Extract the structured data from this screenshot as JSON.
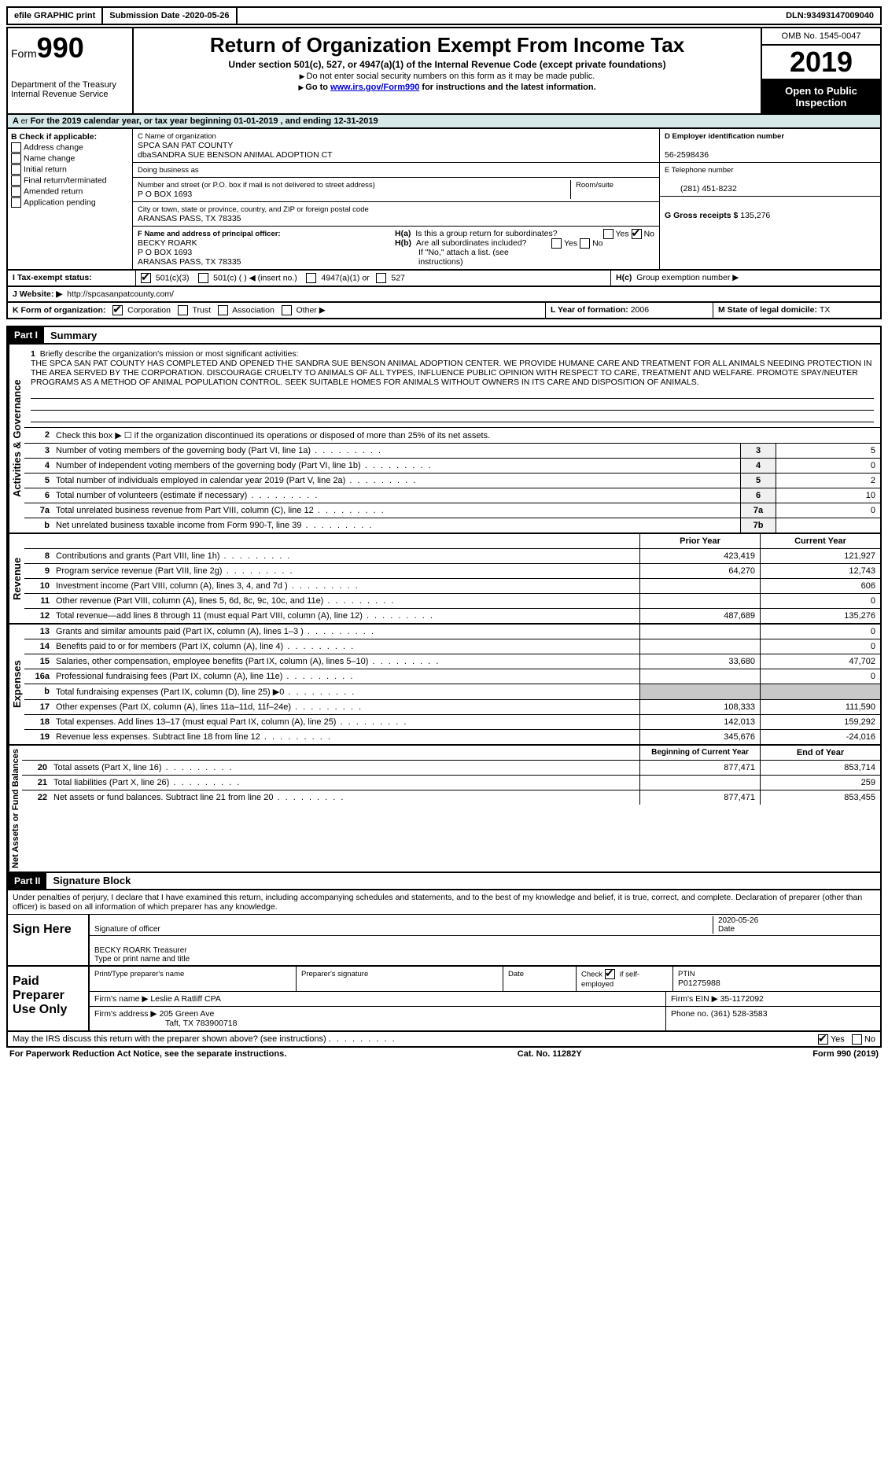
{
  "topbar": {
    "efile": "efile GRAPHIC print",
    "submission_label": "Submission Date - ",
    "submission_date": "2020-05-26",
    "dln_label": "DLN: ",
    "dln": "93493147009040"
  },
  "header": {
    "form_word": "Form",
    "form_num": "990",
    "dept": "Department of the Treasury\nInternal Revenue Service",
    "title": "Return of Organization Exempt From Income Tax",
    "subtitle": "Under section 501(c), 527, or 4947(a)(1) of the Internal Revenue Code (except private foundations)",
    "note1": "Do not enter social security numbers on this form as it may be made public.",
    "note2_pre": "Go to ",
    "note2_link": "www.irs.gov/Form990",
    "note2_post": " for instructions and the latest information.",
    "omb": "OMB No. 1545-0047",
    "year": "2019",
    "inspection": "Open to Public Inspection"
  },
  "section_a": "For the 2019 calendar year, or tax year beginning 01-01-2019   , and ending 12-31-2019",
  "col_b": {
    "title": "B Check if applicable:",
    "opts": [
      "Address change",
      "Name change",
      "Initial return",
      "Final return/terminated",
      "Amended return",
      "Application pending"
    ]
  },
  "col_c": {
    "name_label": "C Name of organization",
    "name": "SPCA SAN PAT COUNTY",
    "dba": "dbaSANDRA SUE BENSON ANIMAL ADOPTION CT",
    "doing_business": "Doing business as",
    "street_label": "Number and street (or P.O. box if mail is not delivered to street address)",
    "street": "P O BOX 1693",
    "room_label": "Room/suite",
    "city_label": "City or town, state or province, country, and ZIP or foreign postal code",
    "city": "ARANSAS PASS, TX  78335",
    "officer_label": "F Name and address of principal officer:",
    "officer_name": "BECKY ROARK",
    "officer_addr1": "P O BOX 1693",
    "officer_addr2": "ARANSAS PASS, TX  78335"
  },
  "col_d": {
    "ein_label": "D Employer identification number",
    "ein": "56-2598436",
    "phone_label": "E Telephone number",
    "phone": "(281) 451-8232",
    "gross_label": "G Gross receipts $ ",
    "gross": "135,276"
  },
  "section_h": {
    "ha_label": "H(a)",
    "ha_text": "Is this a group return for subordinates?",
    "hb_label": "H(b)",
    "hb_text": "Are all subordinates included?",
    "hb_note": "If \"No,\" attach a list. (see instructions)",
    "hc_label": "H(c)",
    "hc_text": "Group exemption number ▶",
    "yes": "Yes",
    "no": "No"
  },
  "tax_exempt": {
    "label": "I    Tax-exempt status:",
    "opt1": "501(c)(3)",
    "opt2": "501(c) (  ) ◀ (insert no.)",
    "opt3": "4947(a)(1) or",
    "opt4": "527"
  },
  "website": {
    "label": "J    Website: ▶",
    "url": "http://spcasanpatcounty.com/"
  },
  "form_org": {
    "label": "K Form of organization:",
    "opts": [
      "Corporation",
      "Trust",
      "Association",
      "Other ▶"
    ],
    "year_label": "L Year of formation: ",
    "year": "2006",
    "state_label": "M State of legal domicile: ",
    "state": "TX"
  },
  "part1": {
    "header": "Part I",
    "title": "Summary",
    "activities_label": "Activities & Governance",
    "revenue_label": "Revenue",
    "expenses_label": "Expenses",
    "netassets_label": "Net Assets or Fund Balances",
    "line1_label": "Briefly describe the organization's mission or most significant activities:",
    "mission": "THE SPCA SAN PAT COUNTY HAS COMPLETED AND OPENED THE SANDRA SUE BENSON ANIMAL ADOPTION CENTER. WE PROVIDE HUMANE CARE AND TREATMENT FOR ALL ANIMALS NEEDING PROTECTION IN THE AREA SERVED BY THE CORPORATION. DISCOURAGE CRUELTY TO ANIMALS OF ALL TYPES, INFLUENCE PUBLIC OPINION WITH RESPECT TO CARE, TREATMENT AND WELFARE. PROMOTE SPAY/NEUTER PROGRAMS AS A METHOD OF ANIMAL POPULATION CONTROL. SEEK SUITABLE HOMES FOR ANIMALS WITHOUT OWNERS IN ITS CARE AND DISPOSITION OF ANIMALS.",
    "line2": "Check this box ▶ ☐ if the organization discontinued its operations or disposed of more than 25% of its net assets.",
    "lines_gov": [
      {
        "n": "3",
        "d": "Number of voting members of the governing body (Part VI, line 1a)",
        "box": "3",
        "v": "5"
      },
      {
        "n": "4",
        "d": "Number of independent voting members of the governing body (Part VI, line 1b)",
        "box": "4",
        "v": "0"
      },
      {
        "n": "5",
        "d": "Total number of individuals employed in calendar year 2019 (Part V, line 2a)",
        "box": "5",
        "v": "2"
      },
      {
        "n": "6",
        "d": "Total number of volunteers (estimate if necessary)",
        "box": "6",
        "v": "10"
      },
      {
        "n": "7a",
        "d": "Total unrelated business revenue from Part VIII, column (C), line 12",
        "box": "7a",
        "v": "0"
      },
      {
        "n": "b",
        "d": "Net unrelated business taxable income from Form 990-T, line 39",
        "box": "7b",
        "v": ""
      }
    ],
    "col_prior": "Prior Year",
    "col_current": "Current Year",
    "lines_rev": [
      {
        "n": "8",
        "d": "Contributions and grants (Part VIII, line 1h)",
        "p": "423,419",
        "c": "121,927"
      },
      {
        "n": "9",
        "d": "Program service revenue (Part VIII, line 2g)",
        "p": "64,270",
        "c": "12,743"
      },
      {
        "n": "10",
        "d": "Investment income (Part VIII, column (A), lines 3, 4, and 7d )",
        "p": "",
        "c": "606"
      },
      {
        "n": "11",
        "d": "Other revenue (Part VIII, column (A), lines 5, 6d, 8c, 9c, 10c, and 11e)",
        "p": "",
        "c": "0"
      },
      {
        "n": "12",
        "d": "Total revenue—add lines 8 through 11 (must equal Part VIII, column (A), line 12)",
        "p": "487,689",
        "c": "135,276"
      }
    ],
    "lines_exp": [
      {
        "n": "13",
        "d": "Grants and similar amounts paid (Part IX, column (A), lines 1–3 )",
        "p": "",
        "c": "0"
      },
      {
        "n": "14",
        "d": "Benefits paid to or for members (Part IX, column (A), line 4)",
        "p": "",
        "c": "0"
      },
      {
        "n": "15",
        "d": "Salaries, other compensation, employee benefits (Part IX, column (A), lines 5–10)",
        "p": "33,680",
        "c": "47,702"
      },
      {
        "n": "16a",
        "d": "Professional fundraising fees (Part IX, column (A), line 11e)",
        "p": "",
        "c": "0"
      },
      {
        "n": "b",
        "d": "Total fundraising expenses (Part IX, column (D), line 25) ▶0",
        "p": "shaded",
        "c": "shaded"
      },
      {
        "n": "17",
        "d": "Other expenses (Part IX, column (A), lines 11a–11d, 11f–24e)",
        "p": "108,333",
        "c": "111,590"
      },
      {
        "n": "18",
        "d": "Total expenses. Add lines 13–17 (must equal Part IX, column (A), line 25)",
        "p": "142,013",
        "c": "159,292"
      },
      {
        "n": "19",
        "d": "Revenue less expenses. Subtract line 18 from line 12",
        "p": "345,676",
        "c": "-24,016"
      }
    ],
    "col_begin": "Beginning of Current Year",
    "col_end": "End of Year",
    "lines_net": [
      {
        "n": "20",
        "d": "Total assets (Part X, line 16)",
        "p": "877,471",
        "c": "853,714"
      },
      {
        "n": "21",
        "d": "Total liabilities (Part X, line 26)",
        "p": "",
        "c": "259"
      },
      {
        "n": "22",
        "d": "Net assets or fund balances. Subtract line 21 from line 20",
        "p": "877,471",
        "c": "853,455"
      }
    ]
  },
  "part2": {
    "header": "Part II",
    "title": "Signature Block",
    "perjury": "Under penalties of perjury, I declare that I have examined this return, including accompanying schedules and statements, and to the best of my knowledge and belief, it is true, correct, and complete. Declaration of preparer (other than officer) is based on all information of which preparer has any knowledge.",
    "sign_here": "Sign Here",
    "sig_officer": "Signature of officer",
    "sig_date_label": "Date",
    "sig_date": "2020-05-26",
    "sig_name": "BECKY ROARK Treasurer",
    "sig_name_label": "Type or print name and title",
    "paid_prep": "Paid Preparer Use Only",
    "prep_name_label": "Print/Type preparer's name",
    "prep_sig_label": "Preparer's signature",
    "prep_date_label": "Date",
    "prep_check_label": "Check",
    "prep_self": "if self-employed",
    "ptin_label": "PTIN",
    "ptin": "P01275988",
    "firm_name_label": "Firm's name      ▶",
    "firm_name": "Leslie A Ratliff CPA",
    "firm_ein_label": "Firm's EIN ▶",
    "firm_ein": "35-1172092",
    "firm_addr_label": "Firm's address ▶",
    "firm_addr1": "205 Green Ave",
    "firm_addr2": "Taft, TX  783900718",
    "firm_phone_label": "Phone no. ",
    "firm_phone": "(361) 528-3583",
    "discuss": "May the IRS discuss this return with the preparer shown above? (see instructions)",
    "discuss_yes": "Yes",
    "discuss_no": "No"
  },
  "footer": {
    "left": "For Paperwork Reduction Act Notice, see the separate instructions.",
    "center": "Cat. No. 11282Y",
    "right_pre": "Form ",
    "right_form": "990",
    "right_post": " (2019)"
  }
}
